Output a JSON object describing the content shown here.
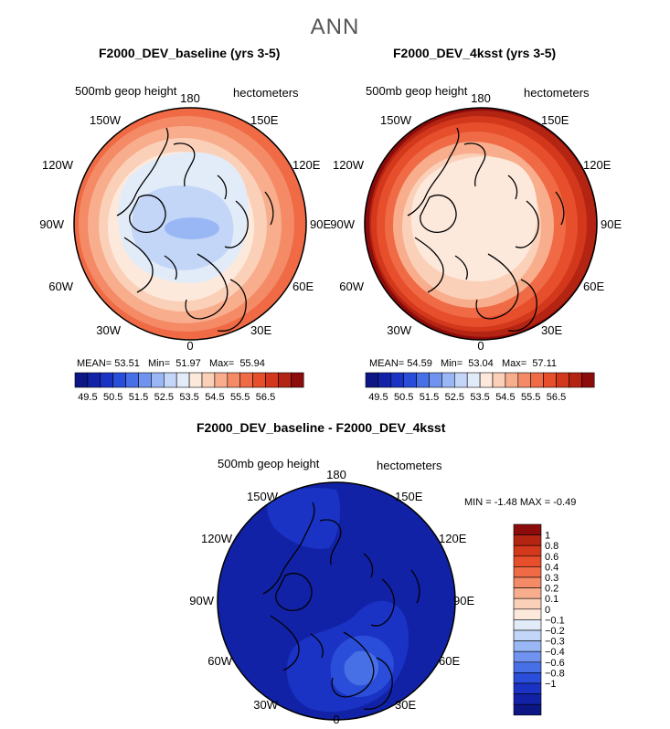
{
  "title": "ANN",
  "palette": {
    "neg": [
      "#0d1685",
      "#1222a6",
      "#1a33c4",
      "#2a4ed9",
      "#476fe6",
      "#6f93ef",
      "#99b7f4",
      "#c3d6f8",
      "#e2ecf9"
    ],
    "pos": [
      "#fde9dc",
      "#fbd0b8",
      "#f8ad8c",
      "#f48a66",
      "#ef6a45",
      "#e64e2c",
      "#d3381c",
      "#b42412",
      "#8c0b0b"
    ]
  },
  "panels": [
    {
      "title": "F2000_DEV_baseline (yrs 3-5)",
      "variable": "500mb geop height",
      "units": "hectometers",
      "stats": {
        "mean_label": "MEAN=",
        "mean": "53.51",
        "min_label": "Min=",
        "min": "51.97",
        "max_label": "Max=",
        "max": "55.94"
      },
      "colorbar_ticks": [
        "49.5",
        "50.5",
        "51.5",
        "52.5",
        "53.5",
        "54.5",
        "55.5",
        "56.5"
      ]
    },
    {
      "title": "F2000_DEV_4ksst (yrs 3-5)",
      "variable": "500mb geop height",
      "units": "hectometers",
      "stats": {
        "mean_label": "MEAN=",
        "mean": "54.59",
        "min_label": "Min=",
        "min": "53.04",
        "max_label": "Max=",
        "max": "57.11"
      },
      "colorbar_ticks": [
        "49.5",
        "50.5",
        "51.5",
        "52.5",
        "53.5",
        "54.5",
        "55.5",
        "56.5"
      ]
    }
  ],
  "diff_panel": {
    "title": "F2000_DEV_baseline - F2000_DEV_4ksst",
    "variable": "500mb geop height",
    "units": "hectometers",
    "stats": {
      "min_label": "MIN =",
      "min": "-1.48",
      "max_label": "MAX =",
      "max": "-0.49"
    },
    "colorbar_ticks": [
      "1",
      "0.8",
      "0.6",
      "0.4",
      "0.3",
      "0.2",
      "0.1",
      "0",
      "−0.1",
      "−0.2",
      "−0.3",
      "−0.4",
      "−0.6",
      "−0.8",
      "−1"
    ]
  },
  "map_labels": {
    "lon_180": "180",
    "lon_150W": "150W",
    "lon_150E": "150E",
    "lon_120W": "120W",
    "lon_120E": "120E",
    "lon_90W": "90W",
    "lon_90E": "90E",
    "lon_60W": "60W",
    "lon_60E": "60E",
    "lon_30W": "30W",
    "lon_30E": "30E",
    "lon_0": "0"
  }
}
